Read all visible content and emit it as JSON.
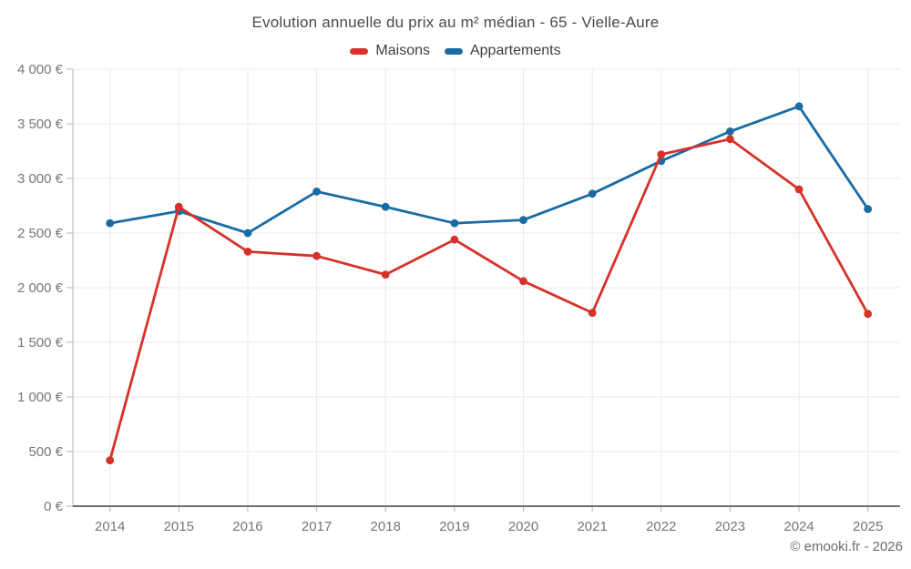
{
  "chart_data": {
    "type": "line",
    "title": "Evolution annuelle du prix au m² médian - 65 - Vielle-Aure",
    "x": [
      2014,
      2015,
      2016,
      2017,
      2018,
      2019,
      2020,
      2021,
      2022,
      2023,
      2024,
      2025
    ],
    "series": [
      {
        "name": "Maisons",
        "color": "#d63229",
        "values": [
          420,
          2740,
          2330,
          2290,
          2120,
          2440,
          2060,
          1770,
          3220,
          3360,
          2900,
          1760
        ]
      },
      {
        "name": "Appartements",
        "color": "#1a6ba4",
        "values": [
          2590,
          2700,
          2500,
          2880,
          2740,
          2590,
          2620,
          2860,
          3160,
          3430,
          3660,
          2720
        ]
      }
    ],
    "ylim": [
      0,
      4000
    ],
    "ytick_step": 500,
    "ytick_suffix": " €",
    "xlabel": "",
    "ylabel": "",
    "grid": true,
    "legend_position": "top-center",
    "marker": "circle"
  },
  "footer": {
    "copyright": "© emooki.fr - 2026"
  },
  "theme": {
    "background": "#ffffff",
    "grid_color": "#e9e9e9",
    "x_axis_line_color": "#6f6f6f",
    "y_axis_line_color": "#b3b3b3",
    "tick_color": "#b3b3b3",
    "axis_label_color": "#767676",
    "title_color": "#4a4a4a",
    "legend_text_color": "#404040"
  }
}
